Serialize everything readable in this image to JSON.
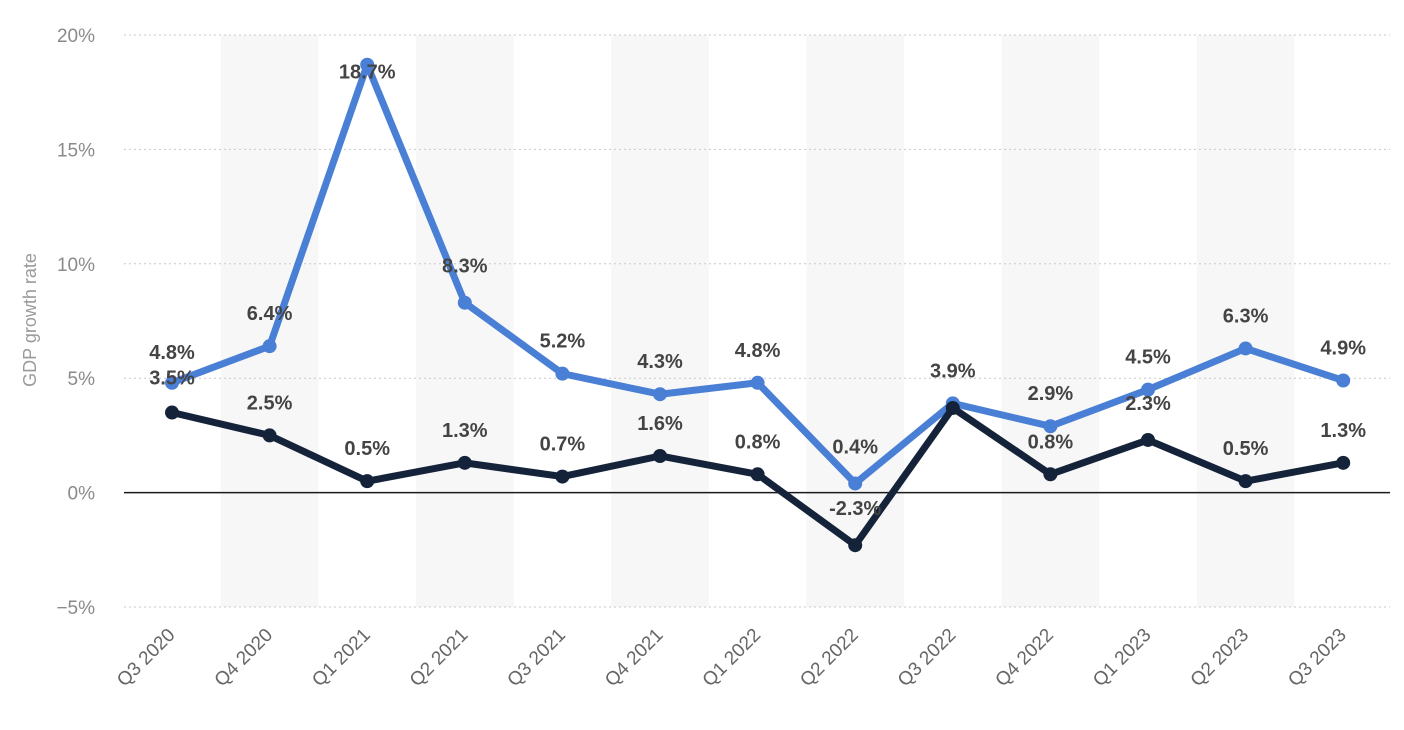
{
  "chart_data": {
    "type": "line",
    "categories": [
      "Q3 2020",
      "Q4 2020",
      "Q1 2021",
      "Q2 2021",
      "Q3 2021",
      "Q4 2021",
      "Q1 2022",
      "Q2 2022",
      "Q3 2022",
      "Q4 2022",
      "Q1 2023",
      "Q2 2023",
      "Q3 2023"
    ],
    "series": [
      {
        "color": "#4a7fd6",
        "values": [
          4.8,
          6.4,
          18.7,
          8.3,
          5.2,
          4.3,
          4.8,
          0.4,
          3.9,
          2.9,
          4.5,
          6.3,
          4.9
        ],
        "labels": [
          "4.8%",
          "6.4%",
          "18.7%",
          "8.3%",
          "5.2%",
          "4.3%",
          "4.8%",
          "0.4%",
          "3.9%",
          "2.9%",
          "4.5%",
          "6.3%",
          "4.9%"
        ]
      },
      {
        "color": "#15233a",
        "values": [
          3.5,
          2.5,
          0.5,
          1.3,
          0.7,
          1.6,
          0.8,
          -2.3,
          3.7,
          0.8,
          2.3,
          0.5,
          1.3
        ],
        "labels": [
          "3.5%",
          "2.5%",
          "0.5%",
          "1.3%",
          "0.7%",
          "1.6%",
          "0.8%",
          "-2.3%",
          "",
          "0.8%",
          "2.3%",
          "0.5%",
          "1.3%"
        ]
      }
    ],
    "ylabel": "GDP growth rate",
    "ylim": [
      -5,
      20
    ],
    "yticks": [
      20,
      15,
      10,
      5,
      0,
      -5
    ],
    "ytick_labels": [
      "20%",
      "15%",
      "10%",
      "5%",
      "0%",
      "−5%"
    ],
    "grid": true,
    "legend": "none"
  }
}
